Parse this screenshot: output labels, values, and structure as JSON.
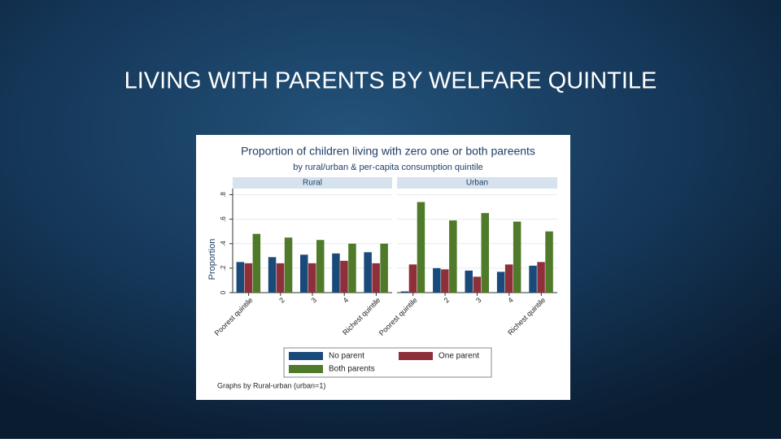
{
  "slide_title": "LIVING WITH PARENTS BY WELFARE QUINTILE",
  "figure": {
    "title": "Proportion of children living with zero one or both pareents",
    "subtitle": "by rural/urban & per-capita consumption quintile",
    "ylabel": "Proportion",
    "note": "Graphs by Rural-urban (urban=1)"
  },
  "chart_data": [
    {
      "type": "bar",
      "title": "Rural",
      "categories": [
        "Poorest quintile",
        "2",
        "3",
        "4",
        "Richest quintile"
      ],
      "ylim": [
        0,
        0.85
      ],
      "yticks": [
        0,
        {
          "value": 0.2,
          "label": ".2"
        },
        {
          "value": 0.4,
          "label": ".4"
        },
        {
          "value": 0.6,
          "label": ".6"
        },
        {
          "value": 0.8,
          "label": ".8"
        }
      ],
      "grid": true,
      "series": [
        {
          "name": "No parent",
          "color": "#1a4a7a",
          "values": [
            0.25,
            0.29,
            0.31,
            0.32,
            0.33
          ]
        },
        {
          "name": "One parent",
          "color": "#8f2f3a",
          "values": [
            0.24,
            0.24,
            0.24,
            0.26,
            0.24
          ]
        },
        {
          "name": "Both parents",
          "color": "#4f7a2a",
          "values": [
            0.48,
            0.45,
            0.43,
            0.4,
            0.4
          ]
        }
      ]
    },
    {
      "type": "bar",
      "title": "Urban",
      "categories": [
        "Poorest quintile",
        "2",
        "3",
        "4",
        "Richest quintile"
      ],
      "ylim": [
        0,
        0.85
      ],
      "yticks": [
        0,
        {
          "value": 0.2,
          "label": ".2"
        },
        {
          "value": 0.4,
          "label": ".4"
        },
        {
          "value": 0.6,
          "label": ".6"
        },
        {
          "value": 0.8,
          "label": ".8"
        }
      ],
      "grid": true,
      "series": [
        {
          "name": "No parent",
          "color": "#1a4a7a",
          "values": [
            0.01,
            0.2,
            0.18,
            0.17,
            0.22
          ]
        },
        {
          "name": "One parent",
          "color": "#8f2f3a",
          "values": [
            0.23,
            0.19,
            0.13,
            0.23,
            0.25
          ]
        },
        {
          "name": "Both parents",
          "color": "#4f7a2a",
          "values": [
            0.74,
            0.59,
            0.65,
            0.58,
            0.5
          ]
        }
      ]
    }
  ]
}
